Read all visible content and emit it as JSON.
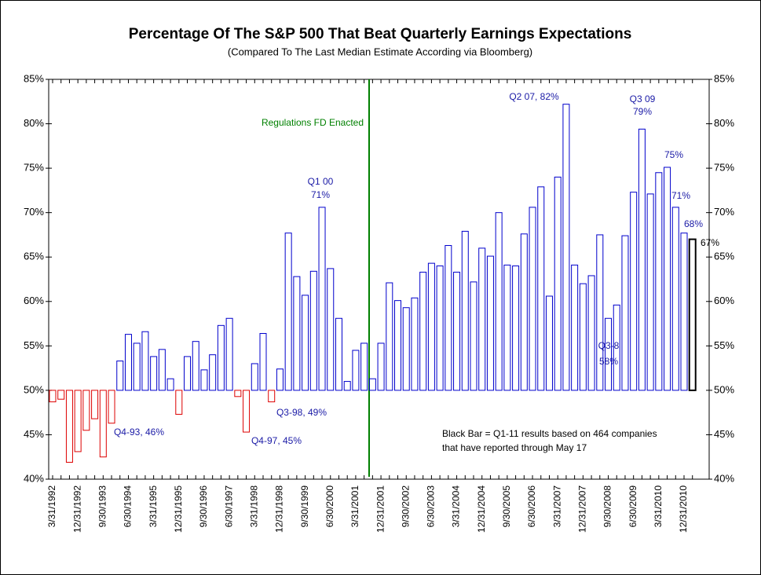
{
  "chart_data": {
    "type": "bar",
    "title": "Percentage Of The S&P 500 That Beat Quarterly Earnings Expectations",
    "subtitle": "(Compared To The Last Median Estimate According via Bloomberg)",
    "categories": [
      "3/31/1992",
      null,
      null,
      "12/31/1992",
      null,
      null,
      "9/30/1993",
      null,
      null,
      "6/30/1994",
      null,
      null,
      "3/31/1995",
      null,
      null,
      "12/31/1995",
      null,
      null,
      "9/30/1996",
      null,
      null,
      "6/30/1997",
      null,
      null,
      "3/31/1998",
      null,
      null,
      "12/31/1998",
      null,
      null,
      "9/30/1999",
      null,
      null,
      "6/30/2000",
      null,
      null,
      "3/31/2001",
      null,
      null,
      "12/31/2001",
      null,
      null,
      "9/30/2002",
      null,
      null,
      "6/30/2003",
      null,
      null,
      "3/31/2004",
      null,
      null,
      "12/31/2004",
      null,
      null,
      "9/30/2005",
      null,
      null,
      "6/30/2006",
      null,
      null,
      "3/31/2007",
      null,
      null,
      "12/31/2007",
      null,
      null,
      "9/30/2008",
      null,
      null,
      "6/30/2009",
      null,
      null,
      "3/31/2010",
      null,
      null,
      "12/31/2010",
      null
    ],
    "values": [
      48.7,
      49.0,
      41.9,
      43.1,
      45.5,
      46.8,
      42.5,
      46.3,
      53.3,
      56.3,
      55.3,
      56.6,
      53.8,
      54.6,
      51.3,
      47.3,
      53.8,
      55.5,
      52.3,
      54.0,
      57.3,
      58.1,
      49.3,
      45.3,
      53.0,
      56.4,
      48.7,
      52.4,
      67.7,
      62.8,
      60.7,
      63.4,
      70.6,
      63.7,
      58.1,
      51.0,
      54.5,
      55.3,
      51.3,
      55.3,
      62.1,
      60.1,
      59.3,
      60.4,
      63.3,
      64.3,
      64.0,
      66.3,
      63.3,
      67.9,
      62.2,
      66.0,
      65.1,
      70.0,
      64.1,
      64.0,
      67.6,
      70.6,
      72.9,
      60.6,
      74.0,
      82.2,
      64.1,
      62.0,
      62.9,
      67.5,
      58.1,
      59.6,
      67.4,
      72.3,
      79.4,
      72.1,
      74.5,
      75.1,
      70.6,
      67.7,
      67.0
    ],
    "base": 50,
    "color": "#0000cc",
    "negative_color": "#dd0000",
    "highlight_color": "#000000",
    "ylim": [
      40,
      85
    ],
    "yticks": [
      {
        "value": 40,
        "label": "40%"
      },
      {
        "value": 45,
        "label": "45%"
      },
      {
        "value": 50,
        "label": "50%"
      },
      {
        "value": 55,
        "label": "55%"
      },
      {
        "value": 60,
        "label": "60%"
      },
      {
        "value": 65,
        "label": "65%"
      },
      {
        "value": 70,
        "label": "70%"
      },
      {
        "value": 75,
        "label": "75%"
      },
      {
        "value": 80,
        "label": "80%"
      },
      {
        "value": 85,
        "label": "85%"
      }
    ],
    "grid": false,
    "annotations": [
      "Regulations FD Enacted",
      "Q1 00",
      "71%",
      "Q2 07, 82%",
      "Q3 09",
      "79%",
      "75%",
      "71%",
      "68%",
      "67%",
      "Q3-8",
      "58%",
      "Q4-93, 46%",
      "Q4-97, 45%",
      "Q3-98, 49%",
      "Black Bar = Q1-11 results based on 464 companies",
      "that have reported through May 17"
    ]
  }
}
